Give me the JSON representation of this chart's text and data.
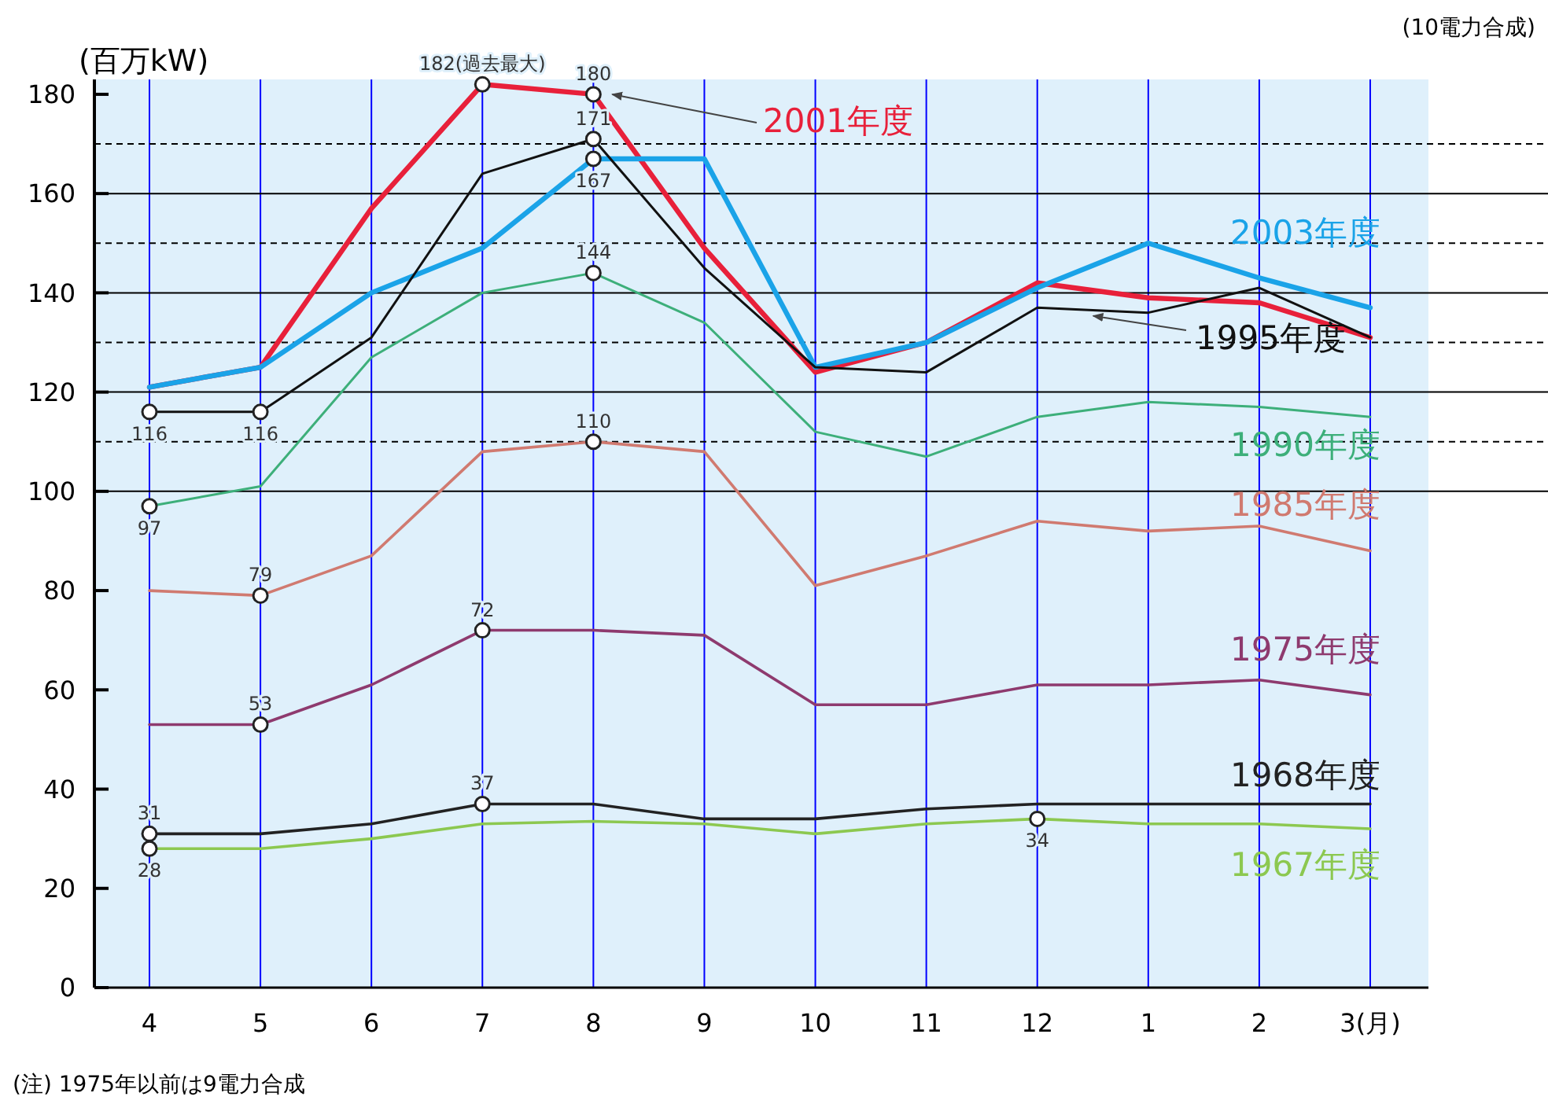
{
  "chart_data": {
    "type": "line",
    "ylabel": "(百万kW)",
    "categories": [
      "4",
      "5",
      "6",
      "7",
      "8",
      "9",
      "10",
      "11",
      "12",
      "1",
      "2",
      "3(月)"
    ],
    "ylim": [
      0,
      183
    ],
    "yticks": [
      0,
      20,
      40,
      60,
      80,
      100,
      120,
      140,
      160,
      180
    ],
    "grid": "x",
    "series": [
      {
        "name": "2001年度",
        "color": "#e8203a",
        "values": [
          121,
          125,
          157,
          182,
          180,
          149,
          124,
          130,
          142,
          139,
          138,
          131
        ],
        "value_labels": [
          null,
          null,
          null,
          "182(過去最大)",
          "180",
          null,
          null,
          null,
          null,
          null,
          null,
          null
        ]
      },
      {
        "name": "2003年度",
        "color": "#1aa3e8",
        "values": [
          121,
          125,
          140,
          149,
          167,
          167,
          125,
          130,
          141,
          150,
          143,
          137
        ],
        "value_labels": [
          null,
          null,
          null,
          null,
          "167",
          null,
          null,
          null,
          null,
          null,
          null,
          null
        ]
      },
      {
        "name": "1995年度",
        "color": "#111111",
        "values": [
          116,
          116,
          131,
          164,
          171,
          145,
          125,
          124,
          137,
          136,
          141,
          131
        ],
        "value_labels": [
          "116",
          "116",
          null,
          null,
          "171",
          null,
          null,
          null,
          null,
          null,
          null,
          null
        ]
      },
      {
        "name": "1990年度",
        "color": "#3daf7a",
        "values": [
          97,
          101,
          127,
          140,
          144,
          134,
          112,
          107,
          115,
          118,
          117,
          115
        ],
        "value_labels": [
          "97",
          null,
          null,
          null,
          "144",
          null,
          null,
          null,
          null,
          null,
          null,
          null
        ]
      },
      {
        "name": "1985年度",
        "color": "#d07a70",
        "values": [
          80,
          79,
          87,
          108,
          110,
          108,
          81,
          87,
          94,
          92,
          93,
          88
        ],
        "value_labels": [
          null,
          "79",
          null,
          null,
          "110",
          null,
          null,
          null,
          null,
          null,
          null,
          null
        ]
      },
      {
        "name": "1975年度",
        "color": "#8e3a6e",
        "values": [
          53,
          53,
          61,
          72,
          72,
          71,
          57,
          57,
          61,
          61,
          62,
          59
        ],
        "value_labels": [
          null,
          "53",
          null,
          "72",
          null,
          null,
          null,
          null,
          null,
          null,
          null,
          null
        ]
      },
      {
        "name": "1968年度",
        "color": "#222222",
        "values": [
          31,
          31,
          33,
          37,
          37,
          34,
          34,
          36,
          37,
          37,
          37,
          37
        ],
        "value_labels": [
          "31",
          null,
          null,
          "37",
          null,
          null,
          null,
          null,
          null,
          null,
          null,
          null
        ]
      },
      {
        "name": "1967年度",
        "color": "#8cc850",
        "values": [
          28,
          28,
          30,
          33,
          33.5,
          33,
          31,
          33,
          34,
          33,
          33,
          32
        ],
        "value_labels": [
          "28",
          null,
          null,
          null,
          null,
          null,
          null,
          null,
          "34",
          null,
          null,
          null
        ]
      }
    ],
    "ref_lines": [
      {
        "axis": "y",
        "value": 100,
        "color": "#000000",
        "line_style": "solid"
      },
      {
        "axis": "y",
        "value": 120,
        "color": "#000000",
        "line_style": "solid"
      },
      {
        "axis": "y",
        "value": 140,
        "color": "#000000",
        "line_style": "solid"
      },
      {
        "axis": "y",
        "value": 160,
        "color": "#000000",
        "line_style": "solid"
      },
      {
        "axis": "y",
        "value": 110,
        "color": "#000000",
        "line_style": "dashed"
      },
      {
        "axis": "y",
        "value": 130,
        "color": "#000000",
        "line_style": "dashed"
      },
      {
        "axis": "y",
        "value": 150,
        "color": "#000000",
        "line_style": "dashed"
      },
      {
        "axis": "y",
        "value": 170,
        "color": "#000000",
        "line_style": "dashed"
      }
    ],
    "annotations": [
      "(10電力合成)",
      "(注) 1975年以前は9電力合成"
    ]
  }
}
